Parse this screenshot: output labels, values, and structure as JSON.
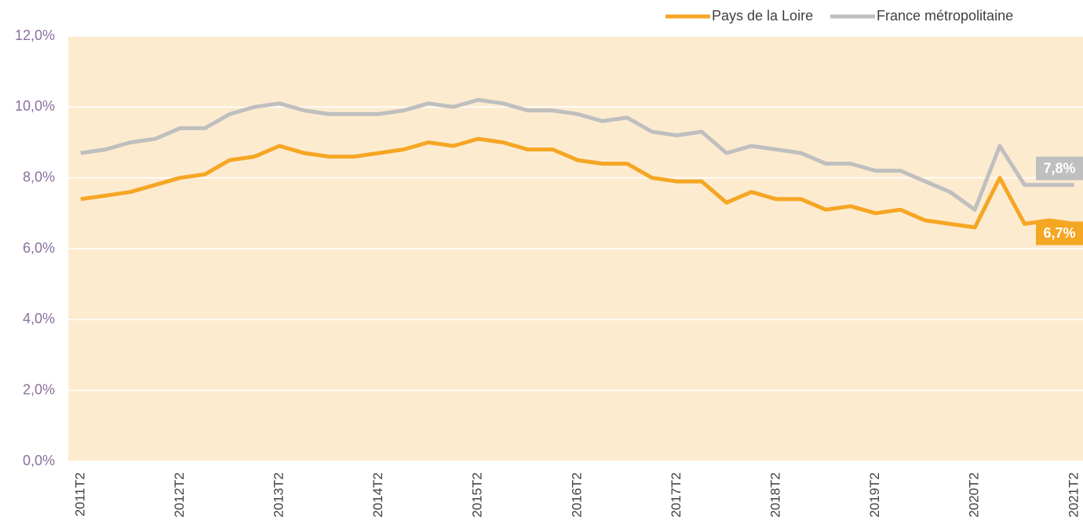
{
  "chart_data": {
    "type": "line",
    "categories": [
      "2011T2",
      null,
      null,
      null,
      "2012T2",
      null,
      null,
      null,
      "2013T2",
      null,
      null,
      null,
      "2014T2",
      null,
      null,
      null,
      "2015T2",
      null,
      null,
      null,
      "2016T2",
      null,
      null,
      null,
      "2017T2",
      null,
      null,
      null,
      "2018T2",
      null,
      null,
      null,
      "2019T2",
      null,
      null,
      null,
      "2020T2",
      null,
      null,
      null,
      "2021T2"
    ],
    "series": [
      {
        "name": "Pays de la Loire",
        "color": "#f5a623",
        "values": [
          7.4,
          7.5,
          7.6,
          7.8,
          8.0,
          8.1,
          8.5,
          8.6,
          8.9,
          8.7,
          8.6,
          8.6,
          8.7,
          8.8,
          9.0,
          8.9,
          9.1,
          9.0,
          8.8,
          8.8,
          8.5,
          8.4,
          8.4,
          8.0,
          7.9,
          7.9,
          7.3,
          7.6,
          7.4,
          7.4,
          7.1,
          7.2,
          7.0,
          7.1,
          6.8,
          6.7,
          6.6,
          8.0,
          6.7,
          6.8,
          6.7
        ],
        "value_labels": [
          null,
          null,
          null,
          null,
          null,
          null,
          null,
          null,
          null,
          null,
          null,
          null,
          null,
          null,
          null,
          null,
          null,
          null,
          null,
          null,
          null,
          null,
          null,
          null,
          null,
          null,
          null,
          null,
          null,
          null,
          null,
          null,
          null,
          null,
          null,
          null,
          null,
          null,
          null,
          null,
          "6,7%"
        ]
      },
      {
        "name": "France métropolitaine",
        "color": "#bfbfbf",
        "values": [
          8.7,
          8.8,
          9.0,
          9.1,
          9.4,
          9.4,
          9.8,
          10.0,
          10.1,
          9.9,
          9.8,
          9.8,
          9.8,
          9.9,
          10.1,
          10.0,
          10.2,
          10.1,
          9.9,
          9.9,
          9.8,
          9.6,
          9.7,
          9.3,
          9.2,
          9.3,
          8.7,
          8.9,
          8.8,
          8.7,
          8.4,
          8.4,
          8.2,
          8.2,
          7.9,
          7.6,
          7.1,
          8.9,
          7.8,
          7.8,
          7.8
        ],
        "value_labels": [
          null,
          null,
          null,
          null,
          null,
          null,
          null,
          null,
          null,
          null,
          null,
          null,
          null,
          null,
          null,
          null,
          null,
          null,
          null,
          null,
          null,
          null,
          null,
          null,
          null,
          null,
          null,
          null,
          null,
          null,
          null,
          null,
          null,
          null,
          null,
          null,
          null,
          null,
          null,
          null,
          "7,8%"
        ]
      }
    ],
    "ylim": [
      0,
      12
    ],
    "yticks": [
      {
        "value": 0,
        "label": "0,0%"
      },
      {
        "value": 2,
        "label": "2,0%"
      },
      {
        "value": 4,
        "label": "4,0%"
      },
      {
        "value": 6,
        "label": "6,0%"
      },
      {
        "value": 8,
        "label": "8,0%"
      },
      {
        "value": 10,
        "label": "10,0%"
      },
      {
        "value": 12,
        "label": "12,0%"
      }
    ],
    "grid": true,
    "legend": "top-right",
    "background": "#fdebd0"
  }
}
